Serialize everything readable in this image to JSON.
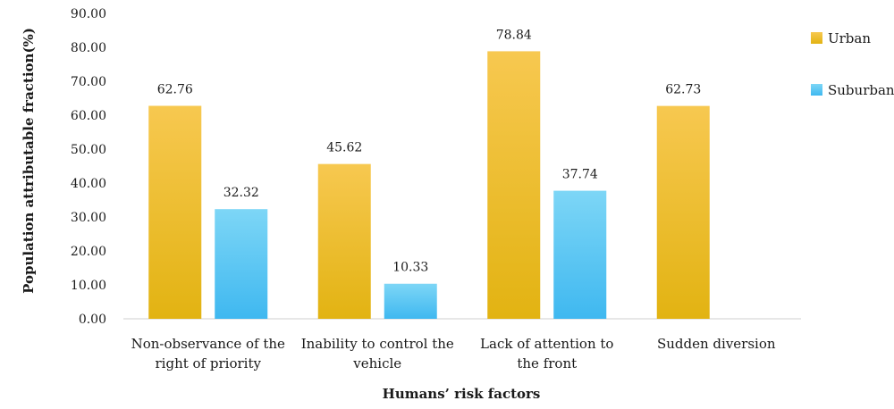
{
  "chart_data": {
    "type": "bar",
    "xlabel": "Humans’ risk factors",
    "ylabel": "Population attributable fraction(%)",
    "ylim": [
      0,
      90
    ],
    "yticks": [
      "0.00",
      "10.00",
      "20.00",
      "30.00",
      "40.00",
      "50.00",
      "60.00",
      "70.00",
      "80.00",
      "90.00"
    ],
    "categories": [
      [
        "Non-observance of the",
        "right of priority"
      ],
      [
        "Inability to control the",
        "vehicle"
      ],
      [
        "Lack of attention to",
        "the front"
      ],
      [
        "Sudden diversion"
      ]
    ],
    "series": [
      {
        "name": "Urban",
        "color_top": "#f7c850",
        "color_bottom": "#e2b312",
        "values": [
          62.76,
          45.62,
          78.84,
          62.73
        ],
        "labels": [
          "62.76",
          "45.62",
          "78.84",
          "62.73"
        ]
      },
      {
        "name": "Suburban",
        "color_top": "#7dd6f6",
        "color_bottom": "#3fb8f0",
        "values": [
          32.32,
          10.33,
          37.74,
          null
        ],
        "labels": [
          "32.32",
          "10.33",
          "37.74",
          ""
        ]
      }
    ],
    "legend_position": "right",
    "grid": false
  }
}
